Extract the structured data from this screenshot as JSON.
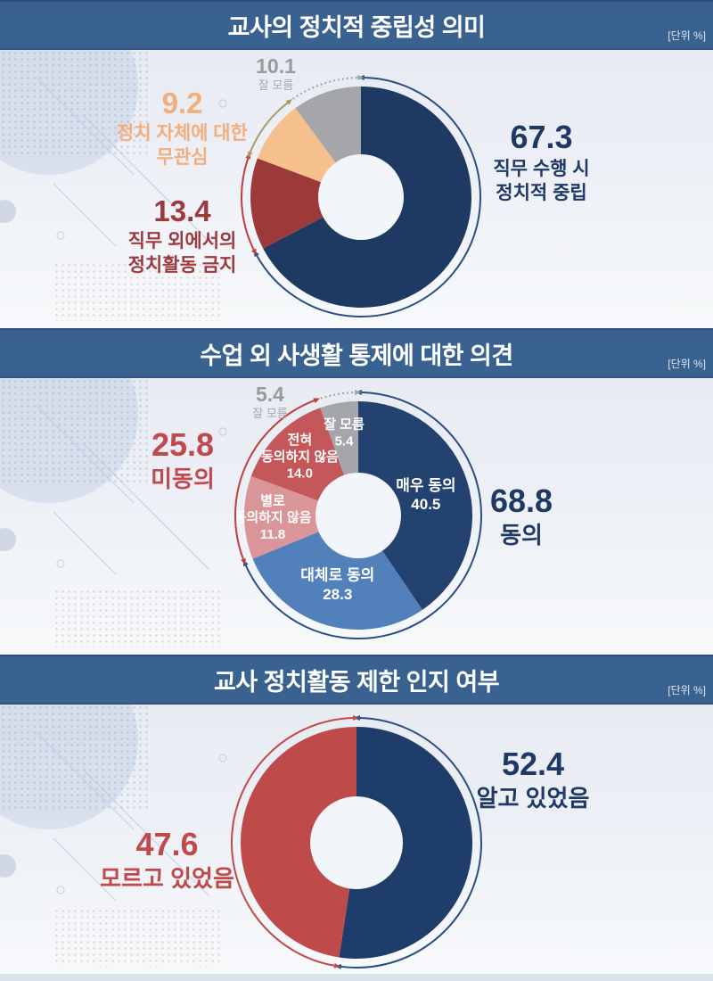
{
  "page": {
    "unit_label": "[단위 %]"
  },
  "sections": [
    {
      "title": "교사의 정치적 중립성 의미",
      "callouts": {
        "main": {
          "value": "67.3",
          "line1": "직무 수행 시",
          "line2": "정치적 중립"
        },
        "ban": {
          "value": "13.4",
          "line1": "직무 외에서의",
          "line2": "정치활동 금지"
        },
        "apathy": {
          "value": "9.2",
          "line1": "정치 자체에 대한",
          "line2": "무관심"
        },
        "unknown": {
          "value": "10.1",
          "line1": "잘 모름"
        }
      }
    },
    {
      "title": "수업 외 사생활 통제에 대한 의견",
      "callouts": {
        "agree": {
          "value": "68.8",
          "line1": "동의"
        },
        "disagree": {
          "value": "25.8",
          "line1": "미동의"
        },
        "unknown": {
          "value": "5.4",
          "line1": "잘 모름"
        }
      }
    },
    {
      "title": "교사 정치활동 제한 인지 여부",
      "callouts": {
        "know": {
          "value": "52.4",
          "line1": "알고 있었음"
        },
        "notknow": {
          "value": "47.6",
          "line1": "모르고 있었음"
        }
      }
    }
  ],
  "chart_data": [
    {
      "type": "pie",
      "title": "교사의 정치적 중립성 의미",
      "unit": "%",
      "donut": true,
      "start_angle_deg": 0,
      "direction": "clockwise",
      "slices": [
        {
          "label": "직무 수행 시 정치적 중립",
          "value": 67.3,
          "color": "#1e3a63",
          "arc_color": "#2a4d85"
        },
        {
          "label": "직무 외에서의 정치활동 금지",
          "value": 13.4,
          "color": "#9c3a3a",
          "arc_color": "#c23c3c"
        },
        {
          "label": "정치 자체에 대한 무관심",
          "value": 9.2,
          "color": "#f6c08c",
          "arc_color": "#a89a6a"
        },
        {
          "label": "잘 모름",
          "value": 10.1,
          "color": "#a5a6a9",
          "arc_color": "#9fa3a9",
          "arc_dotted": true
        }
      ]
    },
    {
      "type": "pie",
      "title": "수업 외 사생활 통제에 대한 의견",
      "unit": "%",
      "donut": true,
      "start_angle_deg": 0,
      "direction": "clockwise",
      "slices": [
        {
          "label": "매우 동의",
          "value": 40.5,
          "color": "#24426f",
          "lines": [
            "매우 동의",
            "40.5"
          ],
          "lr": 0.62,
          "fs": 17
        },
        {
          "label": "대체로 동의",
          "value": 28.3,
          "color": "#5280bb",
          "lines": [
            "대체로 동의",
            "28.3"
          ],
          "lr": 0.63,
          "fs": 17
        },
        {
          "label": "별로 동의하지 않음",
          "value": 11.8,
          "color": "#d99597",
          "lines": [
            "별로",
            "동의하지 않음",
            "11.8"
          ],
          "lr": 0.75,
          "fs": 15
        },
        {
          "label": "전혀 동의하지 않음",
          "value": 14.0,
          "color": "#c4575a",
          "lines": [
            "전혀",
            "동의하지 않음",
            "14.0"
          ],
          "lr": 0.73,
          "fs": 15
        },
        {
          "label": "잘 모름",
          "value": 5.4,
          "color": "#a5a6a9",
          "lines": [
            "잘 모름",
            "5.4"
          ],
          "lr": 0.74,
          "fs": 15
        }
      ],
      "groups": [
        {
          "label": "동의",
          "value": 68.8,
          "from": 0,
          "to": 68.8,
          "color": "#2a4d85"
        },
        {
          "label": "미동의",
          "value": 25.8,
          "from": 68.8,
          "to": 94.6,
          "color": "#c23c3c"
        },
        {
          "label": "잘 모름",
          "value": 5.4,
          "from": 94.6,
          "to": 100,
          "color": "#9fa3a9",
          "dotted": true
        }
      ]
    },
    {
      "type": "pie",
      "title": "교사 정치활동 제한 인지 여부",
      "unit": "%",
      "donut": true,
      "start_angle_deg": 0,
      "direction": "clockwise",
      "slices": [
        {
          "label": "알고 있었음",
          "value": 52.4,
          "color": "#1f3d6b",
          "arc_color": "#2a4d85"
        },
        {
          "label": "모르고 있었음",
          "value": 47.6,
          "color": "#bf4a4a",
          "arc_color": "#c24848"
        }
      ]
    }
  ]
}
